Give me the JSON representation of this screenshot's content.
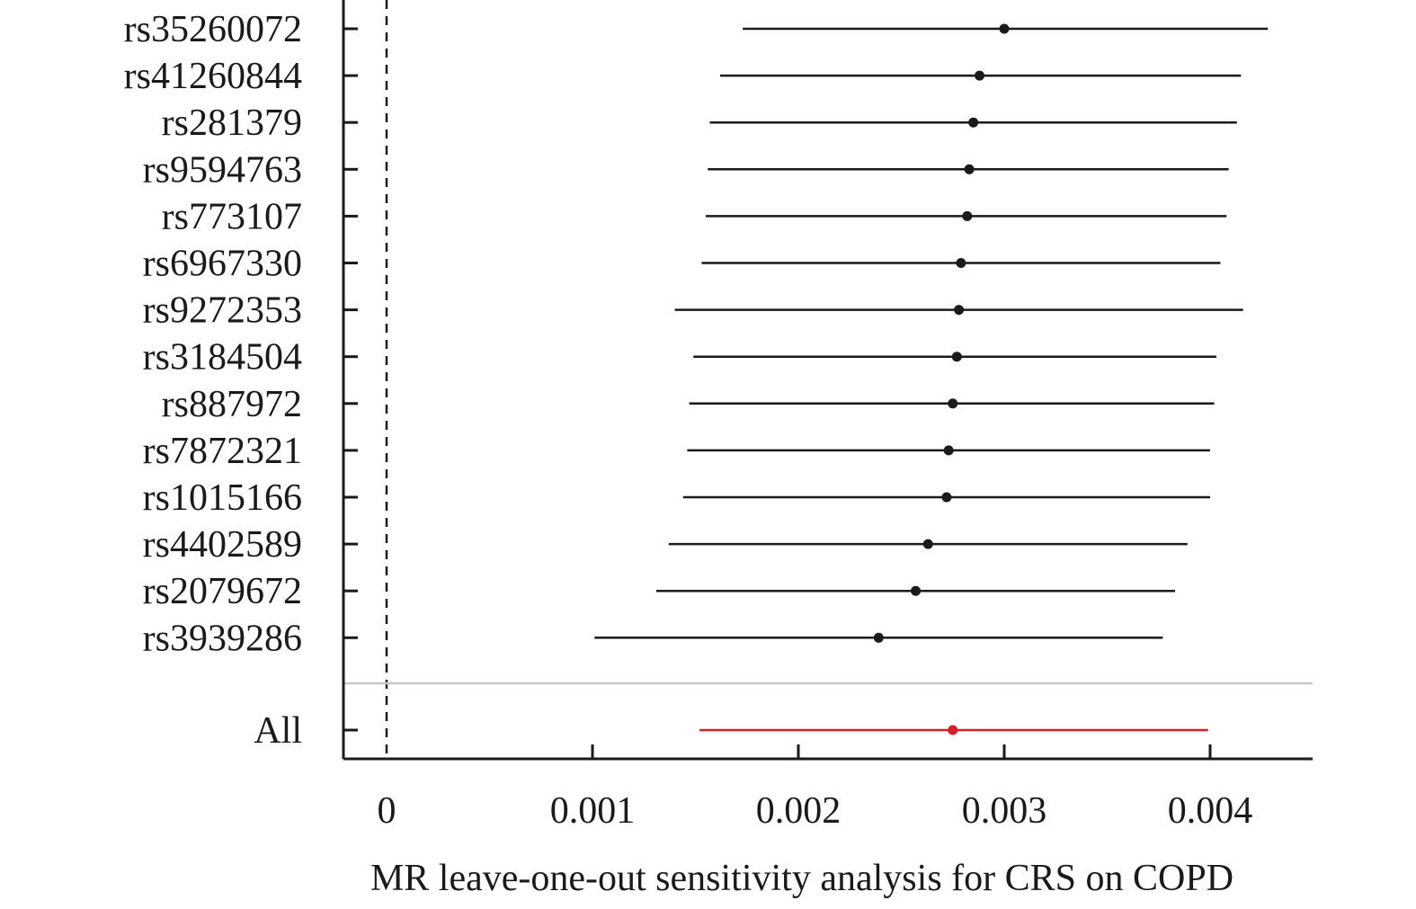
{
  "chart_data": {
    "type": "forest",
    "xlabel": "MR leave-one-out sensitivity analysis for CRS on COPD",
    "xlim": [
      -0.0002,
      0.0045
    ],
    "x_ticks": [
      0,
      0.001,
      0.002,
      0.003,
      0.004
    ],
    "x_tick_labels": [
      "0",
      "0.001",
      "0.002",
      "0.003",
      "0.004"
    ],
    "reference_line": 0,
    "colors": {
      "default": "#1a1a1a",
      "overall": "#d62027",
      "separator": "#c8c8c8"
    },
    "rows": [
      {
        "label": "rs35260072",
        "estimate": 0.003,
        "lower": 0.00173,
        "upper": 0.00428
      },
      {
        "label": "rs41260844",
        "estimate": 0.00288,
        "lower": 0.00162,
        "upper": 0.00415
      },
      {
        "label": "rs281379",
        "estimate": 0.00285,
        "lower": 0.00157,
        "upper": 0.00413
      },
      {
        "label": "rs9594763",
        "estimate": 0.00283,
        "lower": 0.00156,
        "upper": 0.00409
      },
      {
        "label": "rs773107",
        "estimate": 0.00282,
        "lower": 0.00155,
        "upper": 0.00408
      },
      {
        "label": "rs6967330",
        "estimate": 0.00279,
        "lower": 0.00153,
        "upper": 0.00405
      },
      {
        "label": "rs9272353",
        "estimate": 0.00278,
        "lower": 0.0014,
        "upper": 0.00416
      },
      {
        "label": "rs3184504",
        "estimate": 0.00277,
        "lower": 0.00149,
        "upper": 0.00403
      },
      {
        "label": "rs887972",
        "estimate": 0.00275,
        "lower": 0.00147,
        "upper": 0.00402
      },
      {
        "label": "rs7872321",
        "estimate": 0.00273,
        "lower": 0.00146,
        "upper": 0.004
      },
      {
        "label": "rs1015166",
        "estimate": 0.00272,
        "lower": 0.00144,
        "upper": 0.004
      },
      {
        "label": "rs4402589",
        "estimate": 0.00263,
        "lower": 0.00137,
        "upper": 0.00389
      },
      {
        "label": "rs2079672",
        "estimate": 0.00257,
        "lower": 0.00131,
        "upper": 0.00383
      },
      {
        "label": "rs3939286",
        "estimate": 0.00239,
        "lower": 0.00101,
        "upper": 0.00377
      }
    ],
    "overall": {
      "label": "All",
      "estimate": 0.00275,
      "lower": 0.00152,
      "upper": 0.00399
    }
  }
}
